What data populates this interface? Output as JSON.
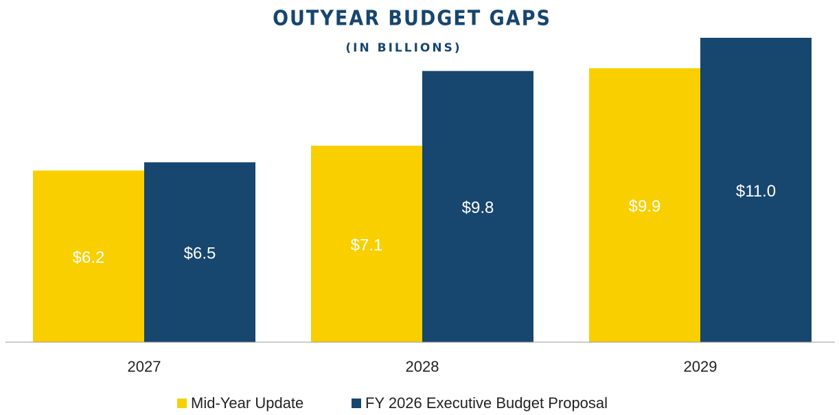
{
  "chart_data": {
    "type": "bar",
    "title": "OUTYEAR BUDGET GAPS",
    "subtitle": "(IN BILLIONS)",
    "categories": [
      "2027",
      "2028",
      "2029"
    ],
    "series": [
      {
        "name": "Mid-Year Update",
        "color": "#f9cf00",
        "values": [
          6.2,
          7.1,
          9.9
        ],
        "value_labels": [
          "$6.2",
          "$7.1",
          "$9.9"
        ]
      },
      {
        "name": "FY 2026 Executive Budget Proposal",
        "color": "#17466f",
        "values": [
          6.5,
          9.8,
          11.0
        ],
        "value_labels": [
          "$6.5",
          "$9.8",
          "$11.0"
        ]
      }
    ],
    "ylim": [
      0,
      11
    ],
    "legend": "bottom"
  }
}
